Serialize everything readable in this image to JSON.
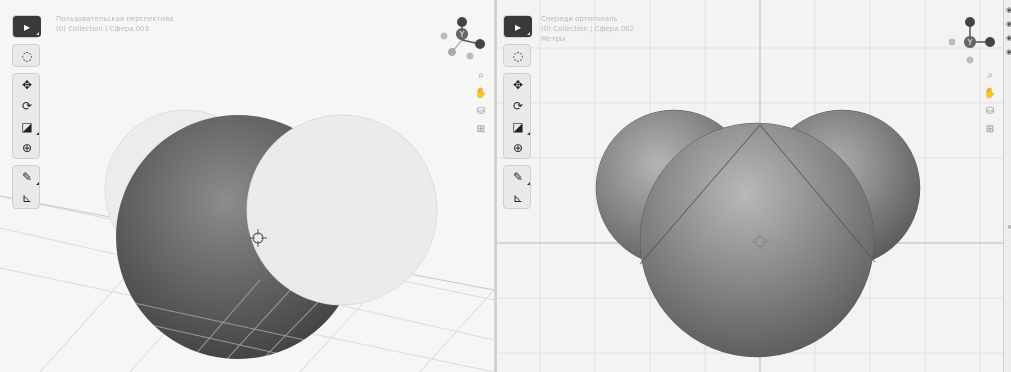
{
  "left_viewport": {
    "view_name": "Пользовательская перспектива",
    "collection": "(0) Collection | Сфера.003"
  },
  "right_viewport": {
    "view_name": "Спереди ортогональ",
    "collection": "(0) Collection | Сфера.002",
    "units": "Метры"
  },
  "gizmo_label": "Y",
  "colors": {
    "panel_bg": "#e9e9e9",
    "active_tool": "#3a3a3a",
    "divider": "#d2d2d2"
  },
  "toolbar_icons": [
    "select-arrow-icon",
    "cursor-icon",
    "move-icon",
    "rotate-icon",
    "scale-icon",
    "transform-icon",
    "annotate-icon",
    "measure-icon"
  ],
  "nav_icons_left": [
    "zoom-icon",
    "pan-hand-icon",
    "camera-icon",
    "grid-view-icon"
  ],
  "nav_icons_right": [
    "zoom-icon",
    "pan-hand-icon",
    "camera-icon",
    "grid-view-icon"
  ]
}
